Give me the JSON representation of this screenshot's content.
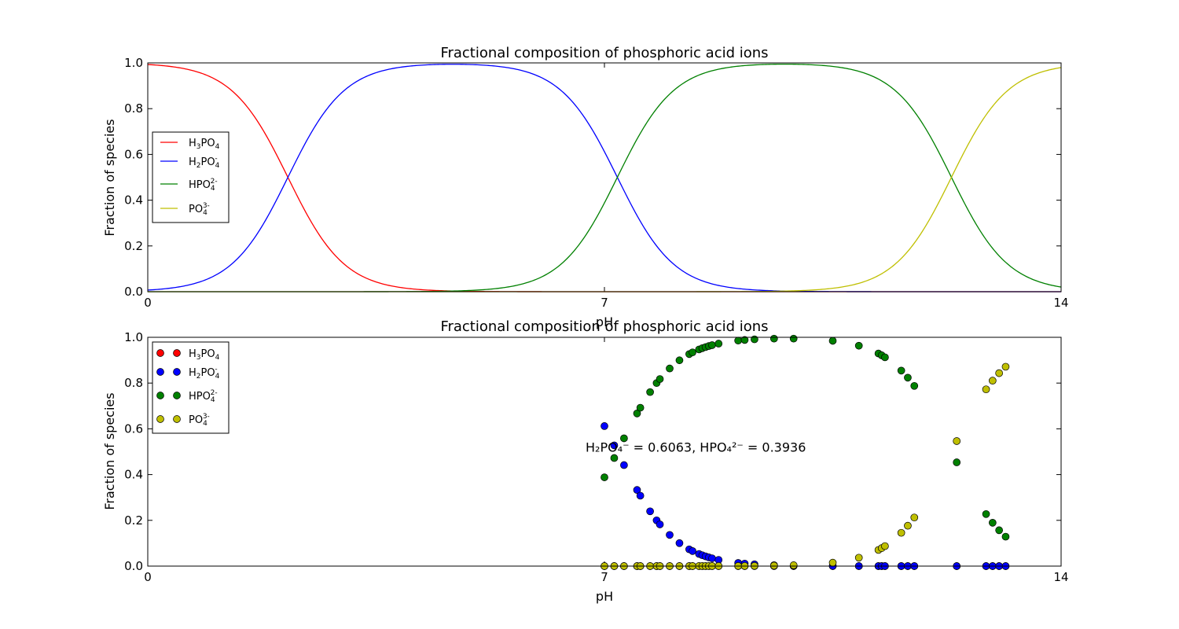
{
  "chart_data": [
    {
      "type": "line",
      "title": "Fractional composition of phosphoric acid ions",
      "xlabel": "pH",
      "ylabel": "Fraction of species",
      "xlim": [
        0,
        14
      ],
      "ylim": [
        0,
        1.0
      ],
      "xticks": [
        "0",
        "7",
        "14"
      ],
      "yticks": [
        "0.0",
        "0.2",
        "0.4",
        "0.6",
        "0.8",
        "1.0"
      ],
      "pKa": [
        2.148,
        7.198,
        12.319
      ],
      "series": [
        {
          "name": "H3PO4",
          "color": "#ff0000"
        },
        {
          "name": "H2PO4-",
          "color": "#0000ff"
        },
        {
          "name": "HPO4 2-",
          "color": "#008000"
        },
        {
          "name": "PO4 3-",
          "color": "#bfbf00"
        }
      ],
      "legend": {
        "placement": "left",
        "entries": [
          {
            "base": "H",
            "sub1": "3",
            "mid": "PO",
            "sub2": "4",
            "sup": ""
          },
          {
            "base": "H",
            "sub1": "2",
            "mid": "PO",
            "sub2": "4",
            "sup": "-"
          },
          {
            "base": "",
            "sub1": "",
            "mid": "HPO",
            "sub2": "4",
            "sup": "2-"
          },
          {
            "base": "",
            "sub1": "",
            "mid": "PO",
            "sub2": "4",
            "sup": "3-"
          }
        ]
      },
      "grid": false
    },
    {
      "type": "scatter",
      "title": "Fractional composition of phosphoric acid ions",
      "xlabel": "pH",
      "ylabel": "Fraction of species",
      "xlim": [
        0,
        14
      ],
      "ylim": [
        0,
        1.0
      ],
      "xticks": [
        "0",
        "7",
        "14"
      ],
      "yticks": [
        "0.0",
        "0.2",
        "0.4",
        "0.6",
        "0.8",
        "1.0"
      ],
      "pKa": [
        2.148,
        7.198,
        12.319
      ],
      "x": [
        7.0,
        7.15,
        7.3,
        7.5,
        7.55,
        7.7,
        7.8,
        7.85,
        8.0,
        8.15,
        8.3,
        8.35,
        8.45,
        8.5,
        8.55,
        8.6,
        8.65,
        8.75,
        9.05,
        9.15,
        9.3,
        9.6,
        9.9,
        10.5,
        10.9,
        11.2,
        11.25,
        11.3,
        11.55,
        11.65,
        11.75,
        12.4,
        12.85,
        12.95,
        13.05,
        13.15
      ],
      "series": [
        {
          "name": "H3PO4",
          "color": "#ff0000"
        },
        {
          "name": "H2PO4-",
          "color": "#0000ff"
        },
        {
          "name": "HPO4 2-",
          "color": "#008000"
        },
        {
          "name": "PO4 3-",
          "color": "#bfbf00"
        }
      ],
      "annotation": {
        "text": "H₂PO₄⁻ = 0.6063, HPO₄²⁻ = 0.3936",
        "x": 8.4,
        "y": 0.52
      },
      "legend": {
        "placement": "top-left",
        "entries": [
          {
            "base": "H",
            "sub1": "3",
            "mid": "PO",
            "sub2": "4",
            "sup": ""
          },
          {
            "base": "H",
            "sub1": "2",
            "mid": "PO",
            "sub2": "4",
            "sup": "-"
          },
          {
            "base": "",
            "sub1": "",
            "mid": "HPO",
            "sub2": "4",
            "sup": "2-"
          },
          {
            "base": "",
            "sub1": "",
            "mid": "PO",
            "sub2": "4",
            "sup": "3-"
          }
        ]
      },
      "grid": false
    }
  ]
}
